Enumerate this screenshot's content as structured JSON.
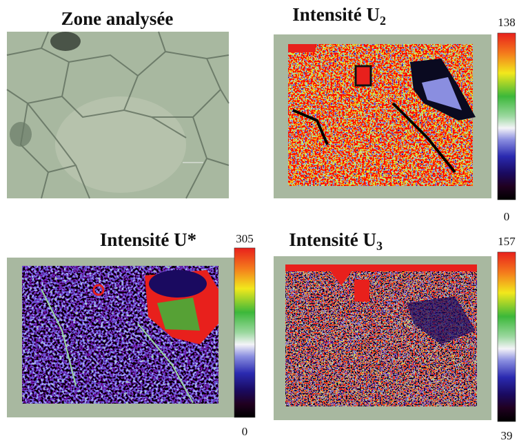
{
  "panels": [
    {
      "title": "Zone analysée"
    },
    {
      "title": "Intensité U",
      "subscript": "2",
      "colorbar": {
        "max": 138,
        "min": 0
      }
    },
    {
      "title": "Intensité U*",
      "colorbar": {
        "max": 305,
        "min": 0
      }
    },
    {
      "title": "Intensité U",
      "subscript": "3",
      "colorbar": {
        "max": 157,
        "min": 39
      }
    }
  ]
}
